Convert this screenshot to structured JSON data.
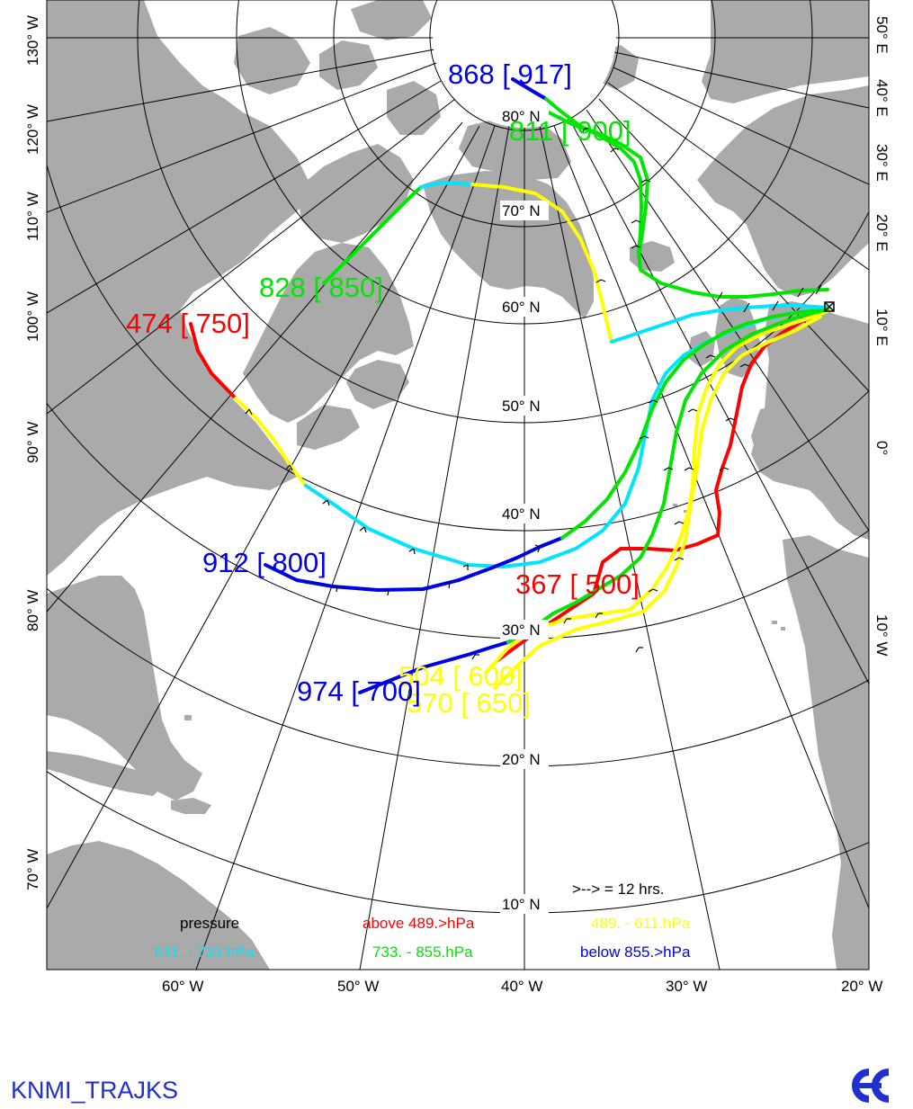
{
  "footer": {
    "title": "KNMI_TRAJKS"
  },
  "icons": {
    "logo": "ecmwf-logo-icon",
    "start_marker": "cross-marker-icon"
  },
  "colors": {
    "land": "#aaaaaa",
    "sea": "#ffffff",
    "grid": "#000000",
    "red": "#ff0000",
    "yellow": "#ffff00",
    "cyan": "#00e5ff",
    "green": "#00e600",
    "blue": "#0000e6",
    "footer": "#1f2fd0"
  },
  "map": {
    "bottom_lon_labels": [
      "60° W",
      "50° W",
      "40° W",
      "30° W",
      "20° W"
    ],
    "left_lon_labels": [
      "130° W",
      "120° W",
      "110° W",
      "100° W",
      "90° W",
      "80° W",
      "70° W"
    ],
    "right_lon_labels": [
      "50° E",
      "40° E",
      "30° E",
      "20° E",
      "10° E",
      "0°",
      "10° W"
    ],
    "lat_labels": [
      "80° N",
      "70° N",
      "60° N",
      "50° N",
      "40° N",
      "30° N",
      "20° N",
      "10° N"
    ]
  },
  "trajectories": [
    {
      "name": "868 [ 917]",
      "color": "blue",
      "label": "868 [ 917]"
    },
    {
      "name": "811 [ 900]",
      "color": "green",
      "label": "811 [ 900]"
    },
    {
      "name": "828 [ 850]",
      "color": "green",
      "label": "828 [ 850]"
    },
    {
      "name": "474 [ 750]",
      "color": "red",
      "label": "474 [ 750]"
    },
    {
      "name": "912 [ 800]",
      "color": "blue",
      "label": "912 [ 800]"
    },
    {
      "name": "367 [ 500]",
      "color": "red",
      "label": "367 [ 500]"
    },
    {
      "name": "504 [ 600]",
      "color": "yellow",
      "label": "504 [ 600]"
    },
    {
      "name": "570 [ 650]",
      "color": "yellow",
      "label": "570 [ 650]"
    },
    {
      "name": "974 [ 700]",
      "color": "blue",
      "label": "974 [ 700]"
    }
  ],
  "legend": {
    "arrow_note": ">--> = 12 hrs.",
    "title": "pressure",
    "items": [
      {
        "color": "red",
        "text": "above   489.>hPa"
      },
      {
        "color": "yellow",
        "text": "489. -    611.hPa"
      },
      {
        "color": "cyan",
        "text": "611. -    733.hPa"
      },
      {
        "color": "green",
        "text": "733. -    855.hPa"
      },
      {
        "color": "blue",
        "text": "below   855.>hPa"
      }
    ]
  }
}
